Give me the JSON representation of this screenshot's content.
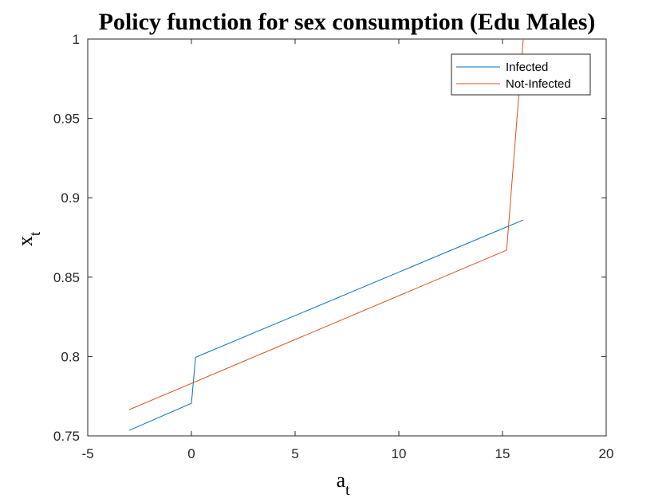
{
  "chart_data": {
    "type": "line",
    "title": "Policy function for sex consumption (Edu Males)",
    "xlabel": {
      "base": "a",
      "sub": "t"
    },
    "ylabel": {
      "base": "x",
      "sub": "t"
    },
    "xlim": [
      -5,
      20
    ],
    "ylim": [
      0.75,
      1
    ],
    "xticks": [
      -5,
      0,
      5,
      10,
      15,
      20
    ],
    "xtick_labels": [
      "-5",
      "0",
      "5",
      "10",
      "15",
      "20"
    ],
    "yticks": [
      0.75,
      0.8,
      0.85,
      0.9,
      0.95,
      1
    ],
    "ytick_labels": [
      "0.75",
      "0.8",
      "0.85",
      "0.9",
      "0.95",
      "1"
    ],
    "grid": false,
    "legend_position": "top-right",
    "series": [
      {
        "name": "Infected",
        "color": "#0072BD",
        "x": [
          -3,
          0,
          0.2,
          16
        ],
        "y": [
          0.7535,
          0.7705,
          0.7995,
          0.886
        ]
      },
      {
        "name": "Not-Infected",
        "color": "#D95319",
        "x": [
          -3,
          15.2,
          16
        ],
        "y": [
          0.7665,
          0.867,
          1.0
        ]
      }
    ]
  }
}
